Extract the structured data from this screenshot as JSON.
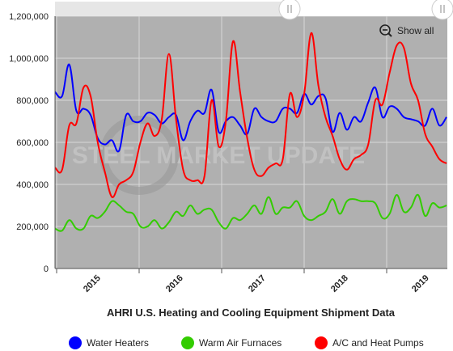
{
  "chart_data": {
    "type": "line",
    "title": "AHRI U.S. Heating and Cooling Equipment Shipment Data",
    "watermark": "STEEL MARKET UPDATE",
    "y_ticks": [
      "0",
      "200,000",
      "400,000",
      "600,000",
      "800,000",
      "1,000,000",
      "1,200,000"
    ],
    "ylim": [
      0,
      1200000
    ],
    "x_tick_labels": [
      "2015",
      "2016",
      "2017",
      "2018",
      "2019"
    ],
    "grid": true,
    "legend_position": "bottom",
    "show_all_label": "Show all",
    "series": [
      {
        "name": "Water Heaters",
        "color": "#0000ff",
        "values": [
          840000,
          820000,
          970000,
          750000,
          760000,
          730000,
          620000,
          590000,
          610000,
          560000,
          730000,
          700000,
          700000,
          740000,
          730000,
          690000,
          720000,
          730000,
          610000,
          700000,
          750000,
          740000,
          850000,
          650000,
          700000,
          720000,
          680000,
          640000,
          760000,
          720000,
          700000,
          700000,
          760000,
          760000,
          740000,
          830000,
          780000,
          820000,
          810000,
          650000,
          740000,
          660000,
          720000,
          700000,
          790000,
          860000,
          720000,
          770000,
          760000,
          720000,
          710000,
          700000,
          680000,
          760000,
          680000,
          720000
        ]
      },
      {
        "name": "Warm Air Furnaces",
        "color": "#33cc00",
        "values": [
          190000,
          180000,
          230000,
          190000,
          190000,
          250000,
          240000,
          270000,
          320000,
          300000,
          270000,
          260000,
          200000,
          200000,
          230000,
          190000,
          220000,
          270000,
          250000,
          300000,
          260000,
          280000,
          280000,
          220000,
          190000,
          240000,
          230000,
          260000,
          300000,
          260000,
          340000,
          260000,
          290000,
          290000,
          320000,
          250000,
          230000,
          250000,
          270000,
          330000,
          260000,
          320000,
          330000,
          320000,
          320000,
          310000,
          240000,
          260000,
          350000,
          270000,
          290000,
          350000,
          250000,
          310000,
          290000,
          300000
        ]
      },
      {
        "name": "A/C and Heat Pumps",
        "color": "#ff0000",
        "values": [
          480000,
          470000,
          680000,
          690000,
          860000,
          820000,
          600000,
          460000,
          340000,
          400000,
          420000,
          460000,
          600000,
          690000,
          630000,
          710000,
          1020000,
          710000,
          470000,
          420000,
          420000,
          440000,
          800000,
          580000,
          700000,
          1080000,
          840000,
          620000,
          470000,
          440000,
          480000,
          500000,
          520000,
          830000,
          720000,
          830000,
          1120000,
          870000,
          720000,
          630000,
          520000,
          470000,
          520000,
          540000,
          590000,
          800000,
          780000,
          930000,
          1060000,
          1050000,
          880000,
          800000,
          640000,
          580000,
          520000,
          500000
        ]
      }
    ]
  }
}
